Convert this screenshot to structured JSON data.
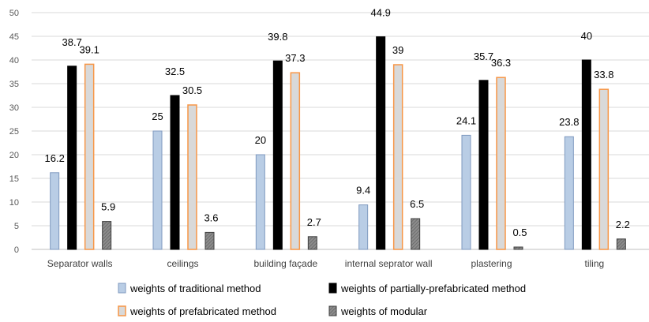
{
  "chart_data": {
    "type": "bar",
    "categories": [
      "Separator walls",
      "ceilings",
      "building façade",
      "internal seprator wall",
      "plastering",
      "tiling"
    ],
    "series": [
      {
        "name": "weights of traditional method",
        "values": [
          16.2,
          25,
          20,
          9.4,
          24.1,
          23.8
        ],
        "labels": [
          "16.2",
          "25",
          "20",
          "9.4",
          "24.1",
          "23.8"
        ],
        "fill": "#B9CDE5",
        "stroke": "#7F99BF"
      },
      {
        "name": "weights of partially-prefabricated method",
        "values": [
          38.7,
          32.5,
          39.8,
          44.9,
          35.7,
          40
        ],
        "labels": [
          "38.7",
          "32.5",
          "39.8",
          "44.9",
          "35.7",
          "40"
        ],
        "fill": "#000000",
        "stroke": "#000000"
      },
      {
        "name": "weights of prefabricated method",
        "values": [
          39.1,
          30.5,
          37.3,
          39,
          36.3,
          33.8
        ],
        "labels": [
          "39.1",
          "30.5",
          "37.3",
          "39",
          "36.3",
          "33.8"
        ],
        "fill": "#D9D9D9",
        "stroke": "#F79646"
      },
      {
        "name": "weights of  modular",
        "values": [
          5.9,
          3.6,
          2.7,
          6.5,
          0.5,
          2.2
        ],
        "labels": [
          "5.9",
          "3.6",
          "2.7",
          "6.5",
          "0.5",
          "2.2"
        ],
        "fill": "#808080",
        "stroke": "#404040"
      }
    ],
    "y_ticks": [
      "0",
      "5",
      "10",
      "15",
      "20",
      "25",
      "30",
      "35",
      "40",
      "45",
      "50"
    ],
    "ylim": [
      0,
      50
    ],
    "y_step": 5,
    "grid": true,
    "legend_position": "bottom",
    "title": "",
    "xlabel": "",
    "ylabel": ""
  }
}
